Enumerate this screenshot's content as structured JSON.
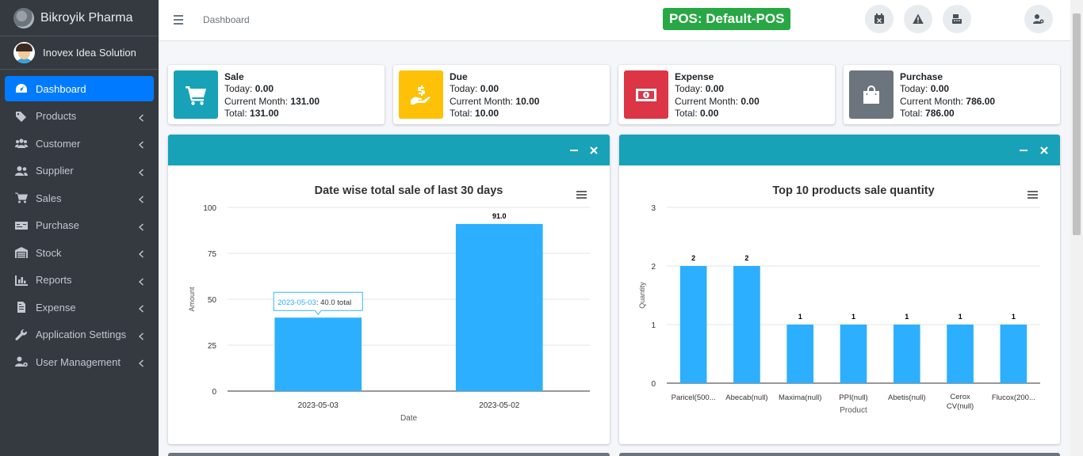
{
  "brand": {
    "name": "Bikroyik Pharma"
  },
  "user": {
    "name": "Inovex Idea Solution"
  },
  "sidebar": {
    "items": [
      {
        "label": "Dashboard",
        "icon": "tachometer-icon",
        "active": true
      },
      {
        "label": "Products",
        "icon": "tags-icon"
      },
      {
        "label": "Customer",
        "icon": "users-icon"
      },
      {
        "label": "Supplier",
        "icon": "user-friends-icon"
      },
      {
        "label": "Sales",
        "icon": "cart-icon"
      },
      {
        "label": "Purchase",
        "icon": "money-check-icon"
      },
      {
        "label": "Stock",
        "icon": "warehouse-icon"
      },
      {
        "label": "Reports",
        "icon": "chart-bar-icon"
      },
      {
        "label": "Expense",
        "icon": "file-invoice-icon"
      },
      {
        "label": "Application Settings",
        "icon": "wrench-icon"
      },
      {
        "label": "User Management",
        "icon": "user-cog-icon"
      }
    ]
  },
  "header": {
    "breadcrumb": "Dashboard",
    "pos_label": "POS: Default-POS",
    "buttons": [
      "calendar-x-icon",
      "warning-icon",
      "cash-register-icon",
      "user-cog-icon"
    ]
  },
  "info_boxes": [
    {
      "title": "Sale",
      "color": "#17a2b8",
      "icon": "cart-icon",
      "today_label": "Today:",
      "today": "0.00",
      "month_label": "Current Month:",
      "month": "131.00",
      "total_label": "Total:",
      "total": "131.00"
    },
    {
      "title": "Due",
      "color": "#ffc107",
      "icon": "hand-dollar-icon",
      "today_label": "Today:",
      "today": "0.00",
      "month_label": "Current Month:",
      "month": "10.00",
      "total_label": "Total:",
      "total": "10.00"
    },
    {
      "title": "Expense",
      "color": "#dc3545",
      "icon": "money-bill-icon",
      "today_label": "Today:",
      "today": "0.00",
      "month_label": "Current Month:",
      "month": "0.00",
      "total_label": "Total:",
      "total": "0.00"
    },
    {
      "title": "Purchase",
      "color": "#6c757d",
      "icon": "shopping-bag-icon",
      "today_label": "Today:",
      "today": "0.00",
      "month_label": "Current Month:",
      "month": "786.00",
      "total_label": "Total:",
      "total": "786.00"
    }
  ],
  "chart_data": [
    {
      "type": "bar",
      "title": "Date wise total sale of last 30 days",
      "xlabel": "Date",
      "ylabel": "Amount",
      "categories": [
        "2023-05-03",
        "2023-05-02"
      ],
      "values": [
        40.0,
        91.0
      ],
      "data_labels": [
        "",
        "91.0"
      ],
      "ylim": [
        0,
        100
      ],
      "yticks": [
        0,
        25,
        50,
        75,
        100
      ],
      "color": "#2caffe",
      "tooltip": {
        "category": "2023-05-03",
        "value": "40.0",
        "suffix": "total"
      }
    },
    {
      "type": "bar",
      "title": "Top 10 products sale quantity",
      "xlabel": "Product",
      "ylabel": "Quantity",
      "categories": [
        "Paricel(500...",
        "Abecab(null)",
        "Maxima(null)",
        "PPI(null)",
        "Abetis(null)",
        "Cerox CV(null)",
        "Flucox(200..."
      ],
      "values": [
        2,
        2,
        1,
        1,
        1,
        1,
        1
      ],
      "ylim": [
        0,
        3
      ],
      "yticks": [
        0,
        1,
        2,
        3
      ],
      "color": "#2caffe"
    }
  ]
}
